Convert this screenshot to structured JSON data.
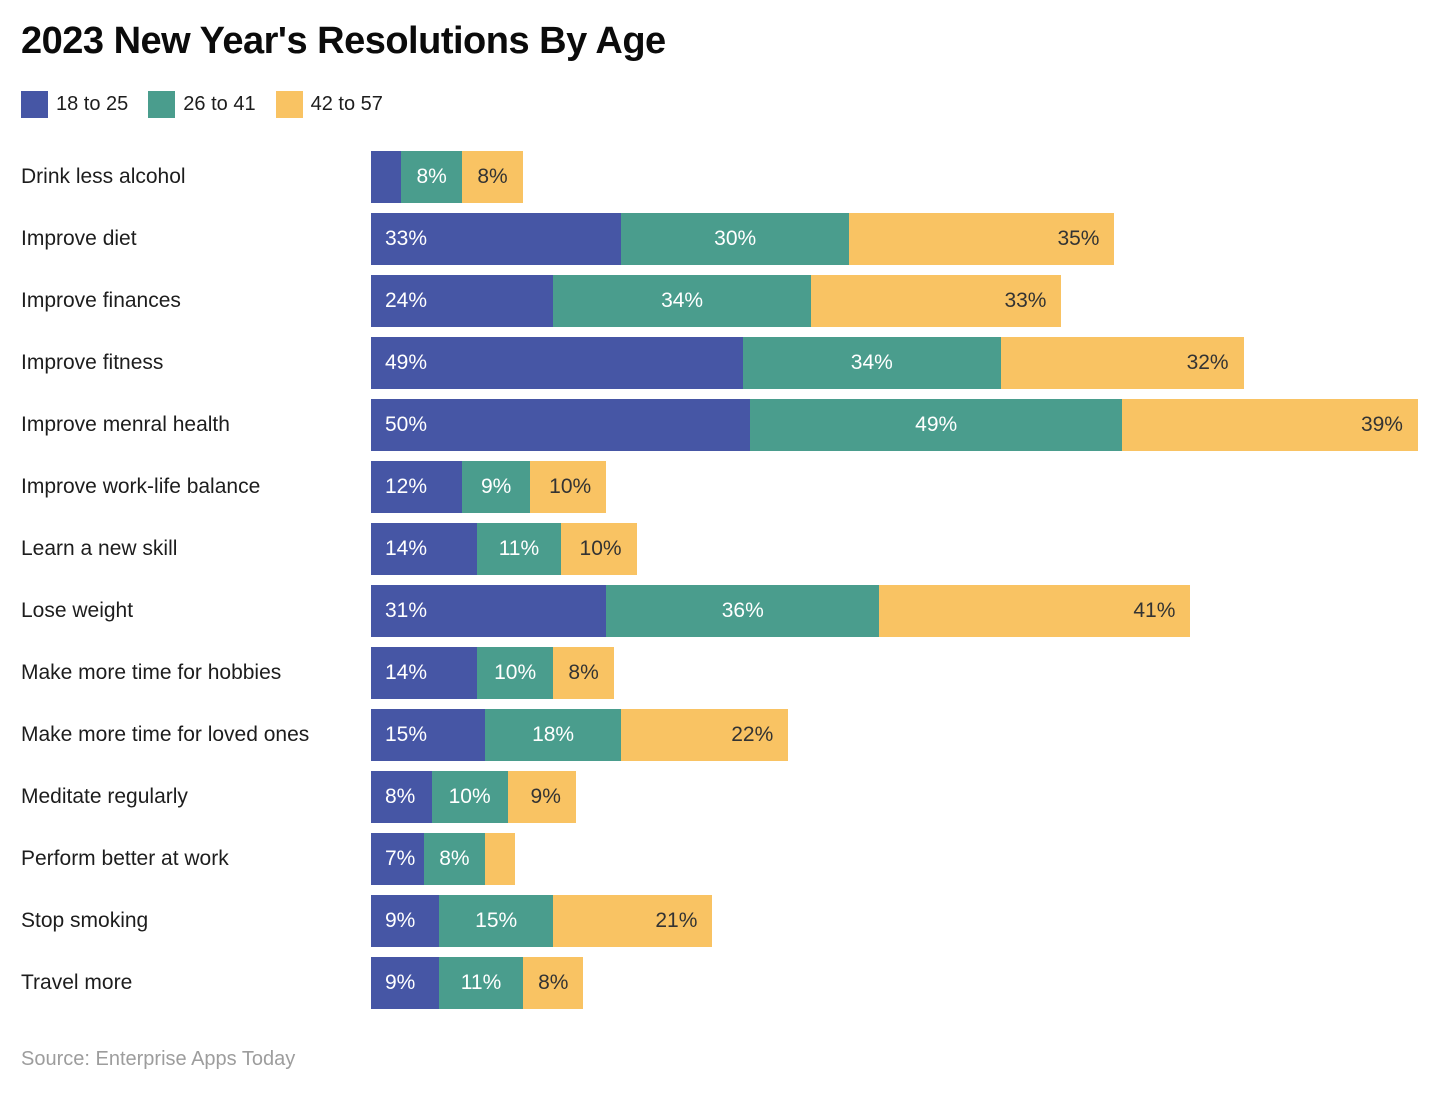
{
  "title": "2023 New Year's Resolutions By Age",
  "source": "Source: Enterprise Apps Today",
  "colors": {
    "background": "#ffffff",
    "title_text": "#0b0b0b",
    "category_text": "#1d1d1d",
    "source_text": "#9d9d9d"
  },
  "chart_data": {
    "type": "bar",
    "orientation": "horizontal",
    "stacked": true,
    "grid": false,
    "legend_position": "top-left",
    "max_total": 138,
    "categories": [
      "Drink less alcohol",
      "Improve diet",
      "Improve finances",
      "Improve fitness",
      "Improve menral health",
      "Improve work-life balance",
      "Learn a new skill",
      "Lose weight",
      "Make more time for hobbies",
      "Make more time for loved ones",
      "Meditate regularly",
      "Perform better at work",
      "Stop smoking",
      "Travel more"
    ],
    "series": [
      {
        "name": "18 to 25",
        "color": "#4656A5",
        "label_color": "#ffffff",
        "values": [
          4,
          33,
          24,
          49,
          50,
          12,
          14,
          31,
          14,
          15,
          8,
          7,
          9,
          9
        ],
        "labels": [
          "",
          "33%",
          "24%",
          "49%",
          "50%",
          "12%",
          "14%",
          "31%",
          "14%",
          "15%",
          "8%",
          "7%",
          "9%",
          "9%"
        ]
      },
      {
        "name": "26 to 41",
        "color": "#4A9D8D",
        "label_color": "#ffffff",
        "values": [
          8,
          30,
          34,
          34,
          49,
          9,
          11,
          36,
          10,
          18,
          10,
          8,
          15,
          11
        ],
        "labels": [
          "8%",
          "30%",
          "34%",
          "34%",
          "49%",
          "9%",
          "11%",
          "36%",
          "10%",
          "18%",
          "10%",
          "8%",
          "15%",
          "11%"
        ]
      },
      {
        "name": "42 to 57",
        "color": "#F9C363",
        "label_color": "#333333",
        "values": [
          8,
          35,
          33,
          32,
          39,
          10,
          10,
          41,
          8,
          22,
          9,
          4,
          21,
          8
        ],
        "labels": [
          "8%",
          "35%",
          "33%",
          "32%",
          "39%",
          "10%",
          "10%",
          "41%",
          "8%",
          "22%",
          "9%",
          "",
          "21%",
          "8%"
        ]
      }
    ]
  }
}
